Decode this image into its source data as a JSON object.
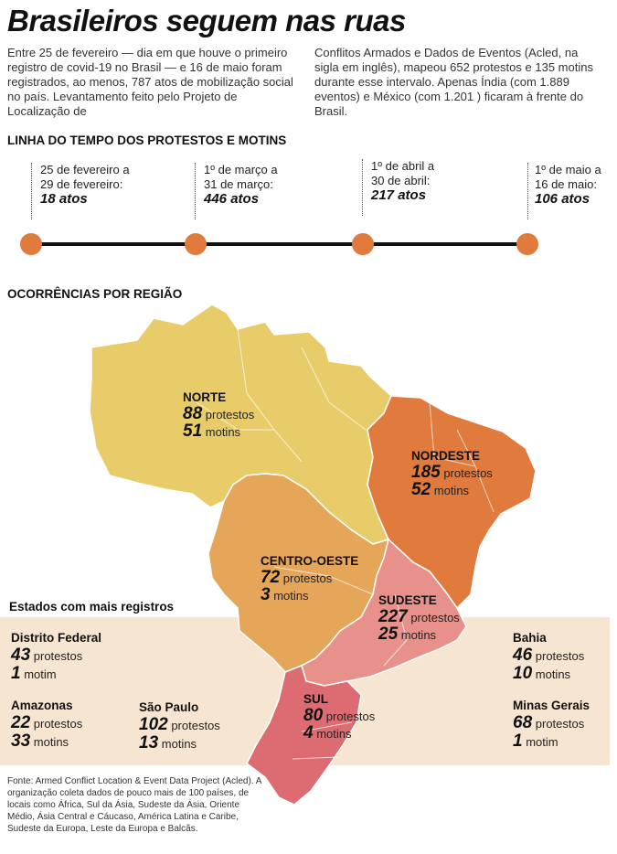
{
  "title": "Brasileiros seguem nas ruas",
  "intro": {
    "left": "Entre 25 de fevereiro — dia em que houve o primeiro registro de covid-19 no Brasil — e 16 de maio foram registrados, ao menos, 787 atos de mobilização social no país. Levantamento feito pelo Projeto de Localização de",
    "right": "Conflitos Armados e Dados de Eventos (Acled, na sigla em inglês), mapeou 652 protestos e 135 motins durante esse intervalo. Apenas Índia (com 1.889 eventos) e México (com 1.201 ) ficaram à frente do Brasil."
  },
  "timeline": {
    "heading": "LINHA DO TEMPO DOS PROTESTOS E MOTINS",
    "items": [
      {
        "line1": "25 de fevereiro a",
        "line2": "29 de fevereiro:",
        "count": "18 atos"
      },
      {
        "line1": "1º de março a",
        "line2": "31 de março:",
        "count": "446 atos"
      },
      {
        "line1": "1º de abril a",
        "line2": "30 de abril:",
        "count": "217 atos"
      },
      {
        "line1": "1º de maio a",
        "line2": "16 de maio:",
        "count": "106 atos"
      }
    ]
  },
  "map": {
    "heading": "OCORRÊNCIAS POR REGIÃO",
    "colors": {
      "norte": "#e8cc6a",
      "nordeste": "#e07a3d",
      "centro_oeste": "#e6a65a",
      "sudeste": "#e8908a",
      "sul": "#dd6c72"
    },
    "regions": {
      "norte": {
        "name": "NORTE",
        "protests": "88",
        "protests_label": "protestos",
        "riots": "51",
        "riots_label": "motins"
      },
      "nordeste": {
        "name": "NORDESTE",
        "protests": "185",
        "protests_label": "protestos",
        "riots": "52",
        "riots_label": "motins"
      },
      "centro_oeste": {
        "name": "CENTRO-OESTE",
        "protests": "72",
        "protests_label": "protestos",
        "riots": "3",
        "riots_label": "motins"
      },
      "sudeste": {
        "name": "SUDESTE",
        "protests": "227",
        "protests_label": "protestos",
        "riots": "25",
        "riots_label": "motins"
      },
      "sul": {
        "name": "SUL",
        "protests": "80",
        "protests_label": "protestos",
        "riots": "4",
        "riots_label": "motins"
      }
    }
  },
  "states": {
    "heading": "Estados com mais registros",
    "distrito_federal": {
      "name": "Distrito Federal",
      "protests": "43",
      "protests_label": "protestos",
      "riots": "1",
      "riots_label": "motim"
    },
    "amazonas": {
      "name": "Amazonas",
      "protests": "22",
      "protests_label": "protestos",
      "riots": "33",
      "riots_label": "motins"
    },
    "sao_paulo": {
      "name": "São Paulo",
      "protests": "102",
      "protests_label": "protestos",
      "riots": "13",
      "riots_label": "motins"
    },
    "bahia": {
      "name": "Bahia",
      "protests": "46",
      "protests_label": "protestos",
      "riots": "10",
      "riots_label": "motins"
    },
    "minas_gerais": {
      "name": "Minas Gerais",
      "protests": "68",
      "protests_label": "protestos",
      "riots": "1",
      "riots_label": "motim"
    }
  },
  "source": "Fonte: Armed Conflict Location & Event Data Project (Acled). A organização coleta dados de pouco mais de 100 países, de locais como África, Sul da Ásia, Sudeste da Ásia, Oriente Médio, Ásia Central e Cáucaso, América Latina e Caribe, Sudeste da Europa, Leste da Europa e Balcãs."
}
